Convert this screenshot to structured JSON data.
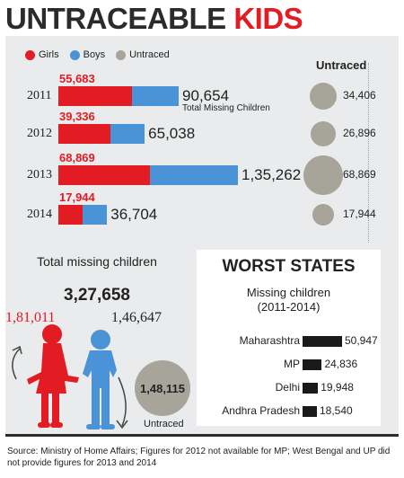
{
  "title": {
    "part1": "UNTRACEABLE",
    "part2": "KIDS"
  },
  "legend": [
    "Girls",
    "Boys",
    "Untraced"
  ],
  "untraced_heading": "Untraced",
  "total_missing_label": "Total Missing Children",
  "summary": {
    "label": "Total missing children",
    "total": "3,27,658",
    "girls": "1,81,011",
    "boys": "1,46,647",
    "untraced": "1,48,115",
    "untraced_label": "Untraced"
  },
  "worst_states": {
    "title": "WORST STATES",
    "subtitle_line1": "Missing children",
    "subtitle_line2": "(2011-2014)"
  },
  "source": "Source: Ministry of Home Affairs; Figures for 2012 not available for MP; West Bengal and UP did not provide figures for 2013 and 2014",
  "colors": {
    "girls": "#e31b23",
    "boys": "#4a93d6",
    "untraced": "#a7a49a",
    "title_accent": "#e31b23"
  },
  "chart_data": [
    {
      "type": "bar",
      "categories": [
        "2011",
        "2012",
        "2013",
        "2014"
      ],
      "series": [
        {
          "name": "Girls",
          "values": [
            55683,
            39336,
            68869,
            17944
          ]
        },
        {
          "name": "Boys",
          "values": [
            34971,
            25702,
            66393,
            18760
          ]
        },
        {
          "name": "Untraced",
          "values": [
            34406,
            26896,
            68869,
            17944
          ]
        }
      ],
      "totals": [
        90654,
        65038,
        135262,
        36704
      ],
      "labels": {
        "girls": [
          "55,683",
          "39,336",
          "68,869",
          "17,944"
        ],
        "totals": [
          "90,654",
          "65,038",
          "1,35,262",
          "36,704"
        ],
        "untraced": [
          "34,406",
          "26,896",
          "68,869",
          "17,944"
        ]
      }
    },
    {
      "type": "bar",
      "orientation": "horizontal",
      "categories": [
        "Maharashtra",
        "MP",
        "Delhi",
        "Andhra Pradesh"
      ],
      "values": [
        50947,
        24836,
        19948,
        18540
      ],
      "labels": [
        "50,947",
        "24,836",
        "19,948",
        "18,540"
      ]
    }
  ]
}
